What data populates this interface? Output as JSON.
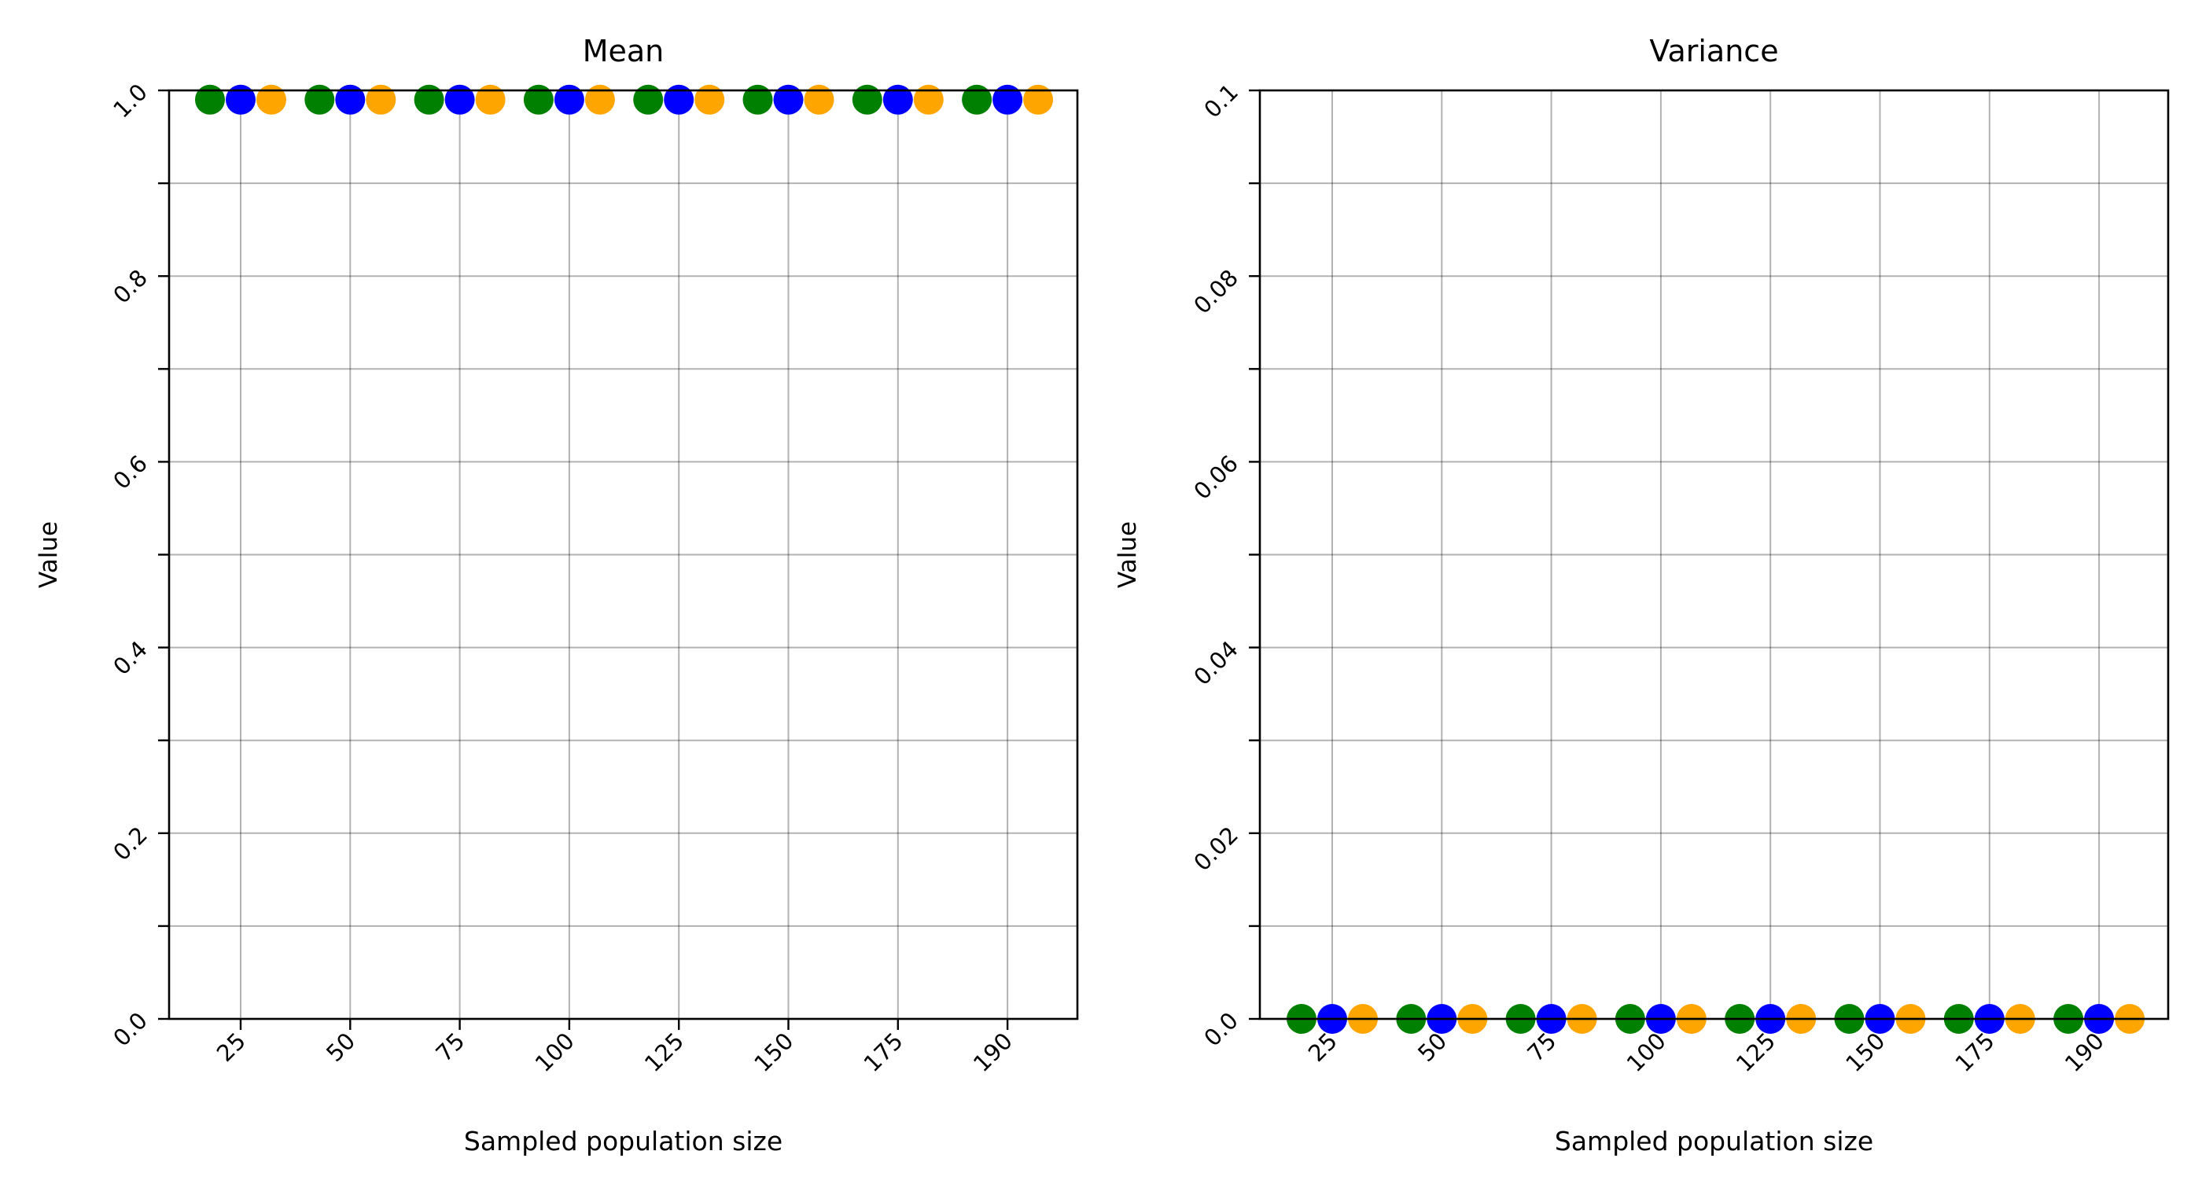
{
  "chart_data": [
    {
      "type": "scatter",
      "title": "Mean",
      "xlabel": "Sampled population size",
      "ylabel": "Value",
      "categories": [
        "25",
        "50",
        "75",
        "100",
        "125",
        "150",
        "175",
        "190"
      ],
      "ylim": [
        0,
        1.0
      ],
      "yticks": [
        "0.0",
        "0.2",
        "0.4",
        "0.6",
        "0.8",
        "1.0"
      ],
      "grid": true,
      "series": [
        {
          "color": "#008000",
          "values": [
            0.99,
            0.99,
            0.99,
            0.99,
            0.99,
            0.99,
            0.99,
            0.99
          ]
        },
        {
          "color": "#0000ff",
          "values": [
            0.99,
            0.99,
            0.99,
            0.99,
            0.99,
            0.99,
            0.99,
            0.99
          ]
        },
        {
          "color": "#ffa500",
          "values": [
            0.99,
            0.99,
            0.99,
            0.99,
            0.99,
            0.99,
            0.99,
            0.99
          ]
        }
      ]
    },
    {
      "type": "scatter",
      "title": "Variance",
      "xlabel": "Sampled population size",
      "ylabel": "Value",
      "categories": [
        "25",
        "50",
        "75",
        "100",
        "125",
        "150",
        "175",
        "190"
      ],
      "ylim": [
        0,
        0.1
      ],
      "yticks": [
        "0.0",
        "0.02",
        "0.04",
        "0.06",
        "0.08",
        "0.1"
      ],
      "grid": true,
      "series": [
        {
          "color": "#008000",
          "values": [
            0,
            0,
            0,
            0,
            0,
            0,
            0,
            0
          ]
        },
        {
          "color": "#0000ff",
          "values": [
            0,
            0,
            0,
            0,
            0,
            0,
            0,
            0
          ]
        },
        {
          "color": "#ffa500",
          "values": [
            0,
            0,
            0,
            0,
            0,
            0,
            0,
            0
          ]
        }
      ]
    }
  ]
}
